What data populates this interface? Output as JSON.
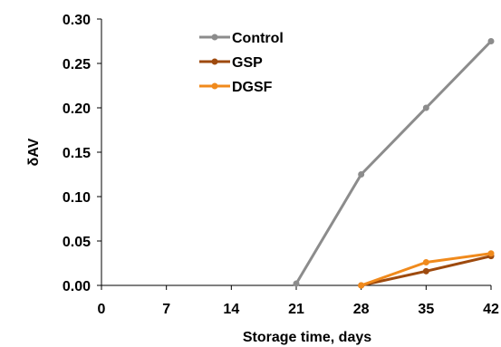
{
  "chart_data": {
    "type": "line",
    "xlabel": "Storage time, days",
    "ylabel": "δAV",
    "xlim": [
      0,
      42
    ],
    "ylim": [
      0,
      0.3
    ],
    "xticks": [
      0,
      7,
      14,
      21,
      28,
      35,
      42
    ],
    "yticks": [
      0.0,
      0.05,
      0.1,
      0.15,
      0.2,
      0.25,
      0.3
    ],
    "ytick_labels": [
      "0.00",
      "0.05",
      "0.10",
      "0.15",
      "0.20",
      "0.25",
      "0.30"
    ],
    "xtick_labels": [
      "0",
      "7",
      "14",
      "21",
      "28",
      "35",
      "42"
    ],
    "grid": false,
    "legend_position": "top-center",
    "series": [
      {
        "name": "Control",
        "color": "#8c8c8c",
        "x": [
          21,
          28,
          35,
          42
        ],
        "y": [
          0.002,
          0.125,
          0.2,
          0.275
        ]
      },
      {
        "name": "GSP",
        "color": "#9e4a0e",
        "x": [
          28,
          35,
          42
        ],
        "y": [
          0.0,
          0.016,
          0.033
        ]
      },
      {
        "name": "DGSF",
        "color": "#f08a1c",
        "x": [
          28,
          35,
          42
        ],
        "y": [
          0.0,
          0.026,
          0.036
        ]
      }
    ]
  }
}
